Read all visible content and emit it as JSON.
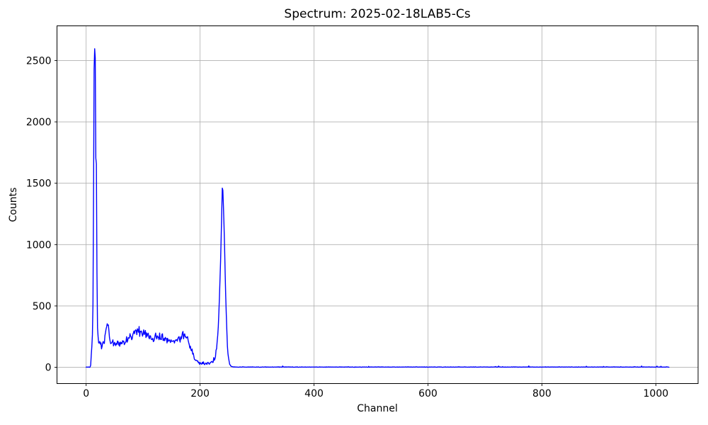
{
  "chart_data": {
    "type": "line",
    "title": "Spectrum: 2025-02-18LAB5-Cs",
    "xlabel": "Channel",
    "ylabel": "Counts",
    "x_ticks": [
      0,
      200,
      400,
      600,
      800,
      1000
    ],
    "y_ticks": [
      0,
      500,
      1000,
      1500,
      2000,
      2500
    ],
    "xlim": [
      -51.15,
      1074.15
    ],
    "ylim": [
      -132.5,
      2782.5
    ],
    "grid": true,
    "legend": false,
    "n_channels": 1024,
    "line_color": "#0000ff",
    "grid_color": "#b0b0b0",
    "spine_color": "#000000",
    "background_color": "#ffffff",
    "series": [
      {
        "name": "counts-vs-channel",
        "keypoints": [
          [
            0,
            2
          ],
          [
            4,
            2
          ],
          [
            6,
            3
          ],
          [
            8,
            20
          ],
          [
            9,
            90
          ],
          [
            10,
            180
          ],
          [
            11,
            240
          ],
          [
            12,
            520
          ],
          [
            13,
            1400
          ],
          [
            14,
            2400
          ],
          [
            15,
            2655
          ],
          [
            16,
            2520
          ],
          [
            17,
            1700
          ],
          [
            18,
            1660
          ],
          [
            19,
            780
          ],
          [
            20,
            330
          ],
          [
            21,
            225
          ],
          [
            23,
            185
          ],
          [
            25,
            170
          ],
          [
            27,
            180
          ],
          [
            29,
            190
          ],
          [
            31,
            205
          ],
          [
            33,
            250
          ],
          [
            35,
            320
          ],
          [
            37,
            365
          ],
          [
            39,
            330
          ],
          [
            40,
            280
          ],
          [
            42,
            220
          ],
          [
            44,
            190
          ],
          [
            46,
            200
          ],
          [
            48,
            182
          ],
          [
            50,
            192
          ],
          [
            53,
            200
          ],
          [
            56,
            188
          ],
          [
            59,
            195
          ],
          [
            62,
            205
          ],
          [
            65,
            210
          ],
          [
            68,
            218
          ],
          [
            71,
            228
          ],
          [
            74,
            240
          ],
          [
            77,
            258
          ],
          [
            80,
            268
          ],
          [
            83,
            278
          ],
          [
            86,
            288
          ],
          [
            89,
            294
          ],
          [
            92,
            286
          ],
          [
            95,
            292
          ],
          [
            98,
            283
          ],
          [
            101,
            278
          ],
          [
            104,
            272
          ],
          [
            107,
            262
          ],
          [
            110,
            256
          ],
          [
            114,
            250
          ],
          [
            118,
            246
          ],
          [
            122,
            242
          ],
          [
            126,
            238
          ],
          [
            130,
            240
          ],
          [
            134,
            236
          ],
          [
            138,
            230
          ],
          [
            142,
            228
          ],
          [
            146,
            224
          ],
          [
            150,
            218
          ],
          [
            154,
            222
          ],
          [
            158,
            228
          ],
          [
            162,
            238
          ],
          [
            166,
            252
          ],
          [
            170,
            262
          ],
          [
            173,
            258
          ],
          [
            176,
            246
          ],
          [
            179,
            220
          ],
          [
            182,
            175
          ],
          [
            185,
            130
          ],
          [
            188,
            95
          ],
          [
            191,
            65
          ],
          [
            194,
            50
          ],
          [
            198,
            40
          ],
          [
            202,
            33
          ],
          [
            206,
            29
          ],
          [
            210,
            28
          ],
          [
            214,
            31
          ],
          [
            218,
            37
          ],
          [
            222,
            50
          ],
          [
            225,
            70
          ],
          [
            228,
            115
          ],
          [
            230,
            200
          ],
          [
            232,
            360
          ],
          [
            234,
            560
          ],
          [
            236,
            860
          ],
          [
            238,
            1260
          ],
          [
            239,
            1445
          ],
          [
            240,
            1420
          ],
          [
            241,
            1330
          ],
          [
            242,
            1180
          ],
          [
            243,
            980
          ],
          [
            244,
            780
          ],
          [
            245,
            580
          ],
          [
            246,
            420
          ],
          [
            247,
            290
          ],
          [
            248,
            190
          ],
          [
            249,
            120
          ],
          [
            250,
            70
          ],
          [
            251,
            42
          ],
          [
            252,
            22
          ],
          [
            254,
            10
          ],
          [
            256,
            5
          ],
          [
            259,
            3
          ],
          [
            264,
            2
          ],
          [
            280,
            2
          ],
          [
            320,
            2
          ],
          [
            400,
            2
          ],
          [
            500,
            2
          ],
          [
            600,
            2
          ],
          [
            700,
            2
          ],
          [
            800,
            2
          ],
          [
            900,
            2
          ],
          [
            1000,
            2
          ],
          [
            1023,
            2
          ]
        ],
        "noise": {
          "seed": 42,
          "k_low": 1.2,
          "k_high": 0.5,
          "high_threshold": 400,
          "tail_sd": 0.9,
          "tail_spike_prob": 0.015,
          "tail_spike_max": 10
        }
      }
    ]
  }
}
